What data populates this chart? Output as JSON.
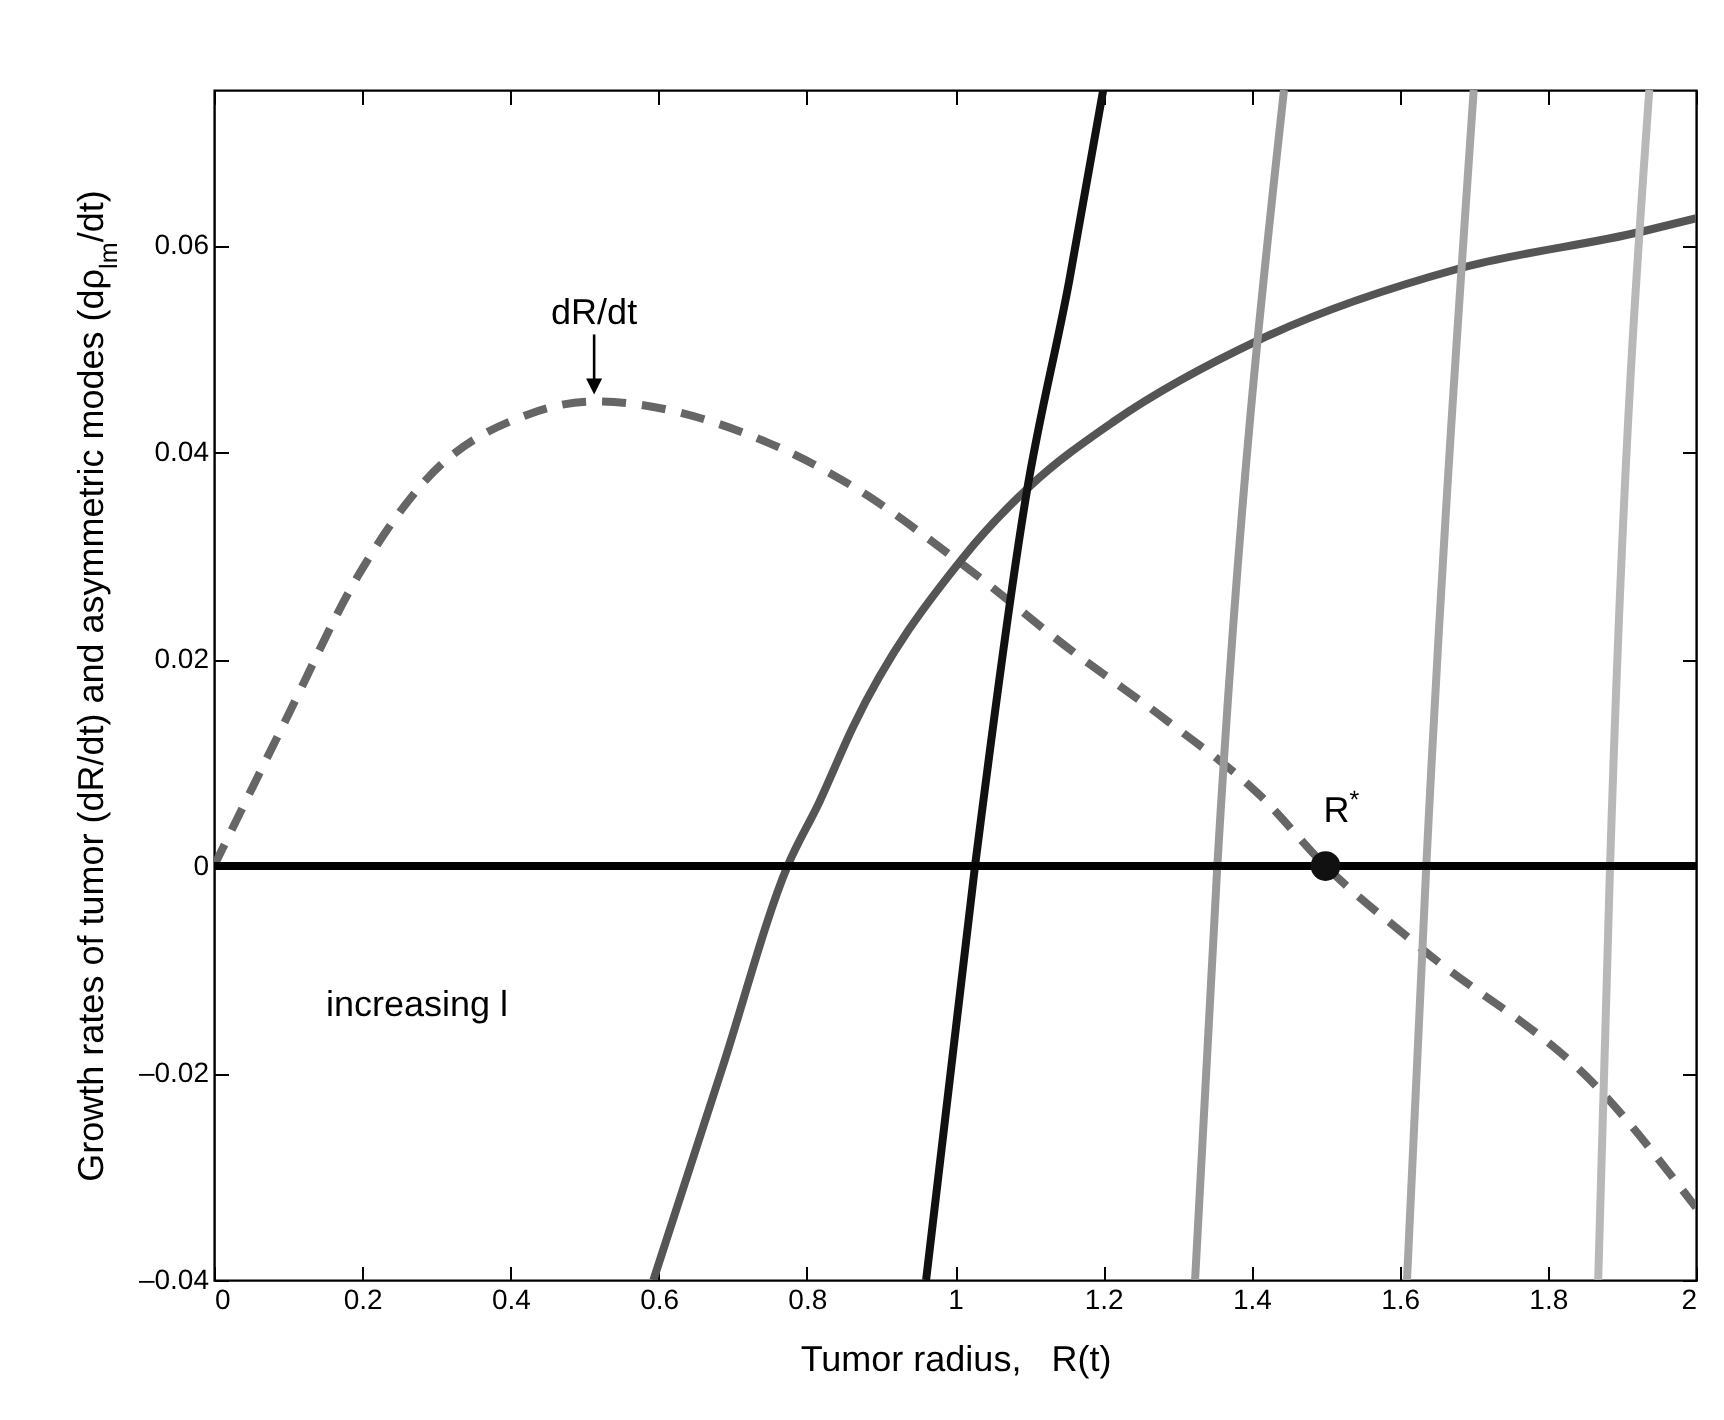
{
  "chart_data": {
    "type": "line",
    "xlabel": "Tumor radius,   R(t)",
    "ylabel": "Growth rates of tumor (dR/dt) and asymmetric modes (dρ$_{lm}$/dt)",
    "xlim": [
      0,
      2
    ],
    "ylim": [
      -0.04,
      0.075
    ],
    "xticks": [
      0,
      0.2,
      0.4,
      0.6,
      0.8,
      1,
      1.2,
      1.4,
      1.6,
      1.8,
      2
    ],
    "yticks": [
      {
        "value": -0.04,
        "label": "–0.04"
      },
      {
        "value": -0.02,
        "label": "–0.02"
      },
      0,
      0.02,
      0.04,
      0.06
    ],
    "grid": false,
    "marker": "none",
    "series": [
      {
        "color": "#666666",
        "line_style": "dashed",
        "x": [
          0,
          0.096,
          0.194,
          0.282,
          0.426,
          0.513,
          0.745,
          0.862,
          1.013,
          1.154,
          1.287,
          1.412,
          1.5,
          1.625,
          1.875,
          2
        ],
        "values": [
          0,
          0.014,
          0.028,
          0.037,
          0.0437,
          0.0449,
          0.041,
          0.0367,
          0.029,
          0.021,
          0.014,
          0.0068,
          0,
          -0.0077,
          -0.022,
          -0.033
        ]
      },
      {
        "color": "#555555",
        "x": [
          0.593,
          0.686,
          0.774,
          0.817,
          0.862,
          1.013,
          1.101,
          1.215,
          1.412,
          1.678,
          1.926,
          2
        ],
        "values": [
          -0.04,
          -0.0195,
          0,
          0.0062,
          0.0134,
          0.03,
          0.0367,
          0.043,
          0.0509,
          0.0577,
          0.0613,
          0.0626
        ]
      },
      {
        "color": "#111111",
        "x": [
          0.961,
          1.027,
          1.096,
          1.154,
          1.2
        ],
        "values": [
          -0.04,
          0,
          0.0358,
          0.0565,
          0.075
        ]
      },
      {
        "color": "#999999",
        "x": [
          1.324,
          1.354,
          1.444
        ],
        "values": [
          -0.04,
          0,
          0.075
        ]
      },
      {
        "color": "#a6a6a6",
        "x": [
          1.61,
          1.636,
          1.7
        ],
        "values": [
          -0.04,
          0,
          0.075
        ]
      },
      {
        "color": "#b8b8b8",
        "x": [
          1.868,
          1.884,
          1.937
        ],
        "values": [
          -0.04,
          0,
          0.075
        ]
      },
      {
        "type": "scatter",
        "color": "#111111",
        "marker": "circle",
        "x": [
          1.5
        ],
        "values": [
          0
        ]
      }
    ],
    "ref_lines": [
      {
        "axis": "y",
        "value": 0,
        "color": "#000000"
      }
    ],
    "annotations": [
      {
        "text": "dR/dt",
        "x": 0.513,
        "y": 0.045
      },
      {
        "text": "R$^{*}$",
        "x": 1.5,
        "y": 0
      },
      "increasing l"
    ]
  }
}
